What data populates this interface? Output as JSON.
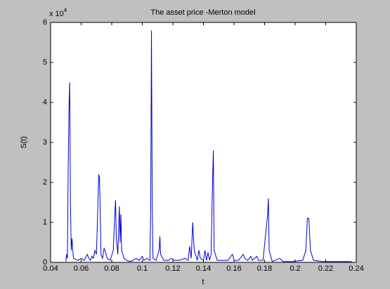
{
  "chart_data": {
    "type": "line",
    "title": "The asset price -Merton model",
    "x_label": "t",
    "y_label": "S(t)",
    "y_multiplier": "x 10",
    "y_multiplier_exponent": "4",
    "color": "#0000cc",
    "xlim": [
      0.04,
      0.24
    ],
    "xticks": [
      0.04,
      0.06,
      0.08,
      0.1,
      0.12,
      0.14,
      0.16,
      0.18,
      0.2,
      0.22,
      0.24
    ],
    "ylim": [
      0,
      6
    ],
    "yticks": [
      0,
      1,
      2,
      3,
      4,
      5,
      6
    ],
    "x": [
      0.05,
      0.0505,
      0.051,
      0.0515,
      0.052,
      0.0525,
      0.053,
      0.0535,
      0.054,
      0.0545,
      0.055,
      0.058,
      0.06,
      0.062,
      0.064,
      0.065,
      0.066,
      0.067,
      0.068,
      0.069,
      0.07,
      0.071,
      0.0715,
      0.072,
      0.0725,
      0.073,
      0.074,
      0.075,
      0.076,
      0.077,
      0.079,
      0.081,
      0.082,
      0.0825,
      0.083,
      0.084,
      0.085,
      0.0855,
      0.086,
      0.0865,
      0.088,
      0.09,
      0.092,
      0.094,
      0.096,
      0.098,
      0.1,
      0.101,
      0.103,
      0.105,
      0.1055,
      0.106,
      0.1065,
      0.107,
      0.109,
      0.111,
      0.1115,
      0.112,
      0.114,
      0.117,
      0.119,
      0.121,
      0.124,
      0.128,
      0.13,
      0.131,
      0.132,
      0.133,
      0.1335,
      0.134,
      0.136,
      0.137,
      0.138,
      0.14,
      0.141,
      0.142,
      0.143,
      0.144,
      0.145,
      0.146,
      0.1465,
      0.147,
      0.149,
      0.152,
      0.156,
      0.159,
      0.16,
      0.163,
      0.166,
      0.167,
      0.169,
      0.171,
      0.172,
      0.175,
      0.176,
      0.179,
      0.182,
      0.1825,
      0.183,
      0.185,
      0.19,
      0.192,
      0.198,
      0.205,
      0.207,
      0.208,
      0.209,
      0.21,
      0.212,
      0.218,
      0.225,
      0.23,
      0.237
    ],
    "values": [
      0.02,
      0.2,
      0.1,
      2.3,
      3.8,
      4.5,
      1.5,
      0.3,
      0.6,
      0.3,
      0.1,
      0.05,
      0.1,
      0.05,
      0.2,
      0.1,
      0.05,
      0.15,
      0.1,
      0.3,
      0.2,
      1.5,
      2.2,
      2.1,
      1.2,
      0.2,
      0.1,
      0.35,
      0.25,
      0.1,
      0.05,
      0.3,
      1.2,
      1.55,
      0.6,
      0.2,
      1.4,
      0.5,
      1.2,
      0.3,
      0.1,
      0.05,
      0.02,
      0.05,
      0.1,
      0.05,
      0.15,
      0.05,
      0.1,
      0.05,
      1.4,
      5.8,
      1.4,
      0.1,
      0.05,
      0.3,
      0.65,
      0.2,
      0.05,
      0.05,
      0.1,
      0.05,
      0.05,
      0.1,
      0.05,
      0.4,
      0.1,
      1.0,
      0.6,
      0.3,
      0.05,
      0.3,
      0.1,
      0.05,
      0.3,
      0.05,
      0.25,
      0.05,
      0.2,
      2.1,
      2.8,
      0.3,
      0.05,
      0.05,
      0.05,
      0.2,
      0.05,
      0.05,
      0.2,
      0.1,
      0.05,
      0.15,
      0.05,
      0.15,
      0.05,
      0.05,
      1.2,
      1.6,
      0.3,
      0.02,
      0.1,
      0.02,
      0.02,
      0.05,
      0.3,
      1.1,
      1.1,
      0.3,
      0.05,
      0.02,
      0.02,
      0.02,
      0.02
    ]
  }
}
